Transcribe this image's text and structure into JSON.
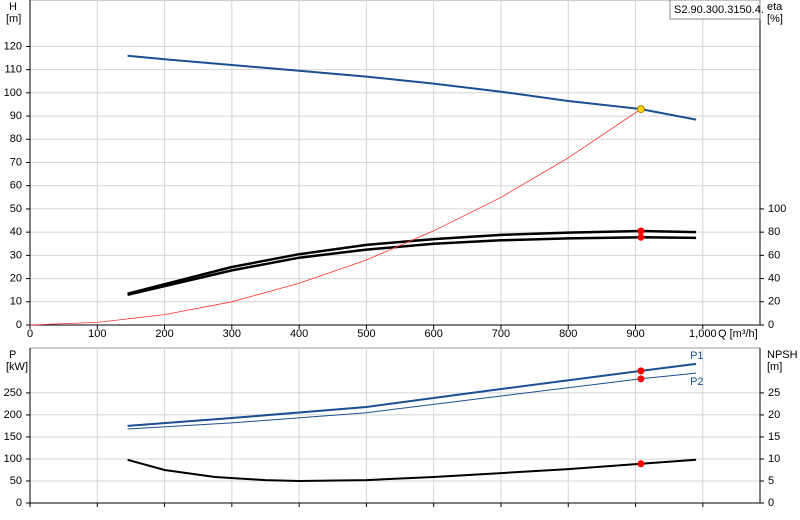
{
  "chart_data": [
    {
      "type": "line",
      "title": "S2.90.300.3150.4.",
      "y_label": "H",
      "y_unit": "[m]",
      "y2_label": "eta",
      "y2_unit": "[%]",
      "x_label": "Q [m³/h]",
      "xlim": [
        0,
        1085
      ],
      "xticks": [
        0,
        100,
        200,
        300,
        400,
        500,
        600,
        700,
        800,
        900,
        {
          "value": 1000,
          "label": "1,000"
        }
      ],
      "ylim": [
        0,
        140
      ],
      "yticks": [
        0,
        10,
        20,
        30,
        40,
        50,
        60,
        70,
        80,
        90,
        100,
        110,
        120
      ],
      "y2lim": [
        0,
        280
      ],
      "y2ticks": [
        0,
        20,
        40,
        60,
        80,
        100
      ],
      "grid": true,
      "series": [
        {
          "color": "#1b4f8f",
          "linewidth": 2,
          "x": [
            145,
            200,
            300,
            400,
            500,
            600,
            700,
            800,
            908,
            990
          ],
          "values": [
            116,
            114.5,
            112,
            109.5,
            107,
            104,
            100.5,
            96.5,
            93,
            88.5
          ]
        },
        {
          "color": "#000000",
          "linewidth": 2.5,
          "axis": "y2",
          "x": [
            145,
            300,
            400,
            500,
            600,
            700,
            800,
            908,
            990
          ],
          "values": [
            27,
            50,
            61,
            69,
            74,
            77.6,
            79.6,
            81,
            80
          ]
        },
        {
          "color": "#000000",
          "linewidth": 2.5,
          "axis": "y2",
          "x": [
            145,
            300,
            400,
            500,
            600,
            700,
            800,
            908,
            990
          ],
          "values": [
            26,
            47,
            58,
            65,
            70,
            73,
            74.6,
            75.6,
            75
          ]
        },
        {
          "color": "#ff3030",
          "linewidth": 0.8,
          "x": [
            0,
            100,
            200,
            300,
            400,
            500,
            600,
            700,
            800,
            908
          ],
          "values": [
            0,
            1.1,
            4.5,
            10,
            18,
            28,
            40.6,
            55,
            72,
            93
          ]
        }
      ],
      "markers": [
        {
          "x": 908,
          "value": 93,
          "color": "#ffd400"
        },
        {
          "x": 908,
          "value": 81,
          "axis": "y2",
          "color": "#ff0000"
        },
        {
          "x": 908,
          "value": 75.6,
          "axis": "y2",
          "color": "#ff0000"
        }
      ]
    },
    {
      "type": "line",
      "y_label": "P",
      "y_unit": "[kW]",
      "y2_label": "NPSH",
      "y2_unit": "[m]",
      "show_xticklabels": false,
      "xlim": [
        0,
        1085
      ],
      "xticks": [
        0,
        100,
        200,
        300,
        400,
        500,
        600,
        700,
        800,
        900,
        1000
      ],
      "ylim": [
        0,
        352
      ],
      "yticks": [
        0,
        50,
        100,
        150,
        200,
        250
      ],
      "y2lim": [
        0,
        35.2
      ],
      "y2ticks": [
        0,
        5,
        10,
        15,
        20,
        25
      ],
      "grid": true,
      "series": [
        {
          "name": "P1",
          "color": "#1b4f8f",
          "linewidth": 2,
          "x": [
            145,
            300,
            500,
            700,
            908,
            990
          ],
          "values": [
            175,
            193,
            218,
            259,
            300,
            316
          ]
        },
        {
          "name": "P2",
          "color": "#1b4f8f",
          "linewidth": 1,
          "x": [
            145,
            300,
            500,
            700,
            908,
            990
          ],
          "values": [
            168,
            182,
            205,
            243,
            282,
            295
          ]
        },
        {
          "color": "#000000",
          "linewidth": 2,
          "axis": "y2",
          "x": [
            145,
            200,
            275,
            350,
            400,
            500,
            600,
            700,
            800,
            908,
            990
          ],
          "values": [
            9.8,
            7.5,
            5.9,
            5.2,
            5.0,
            5.2,
            5.9,
            6.8,
            7.7,
            8.9,
            9.8
          ]
        }
      ],
      "markers": [
        {
          "x": 908,
          "value": 300,
          "color": "#ff0000"
        },
        {
          "x": 908,
          "value": 282,
          "color": "#ff0000"
        },
        {
          "x": 908,
          "value": 8.9,
          "axis": "y2",
          "color": "#ff0000"
        }
      ]
    }
  ]
}
